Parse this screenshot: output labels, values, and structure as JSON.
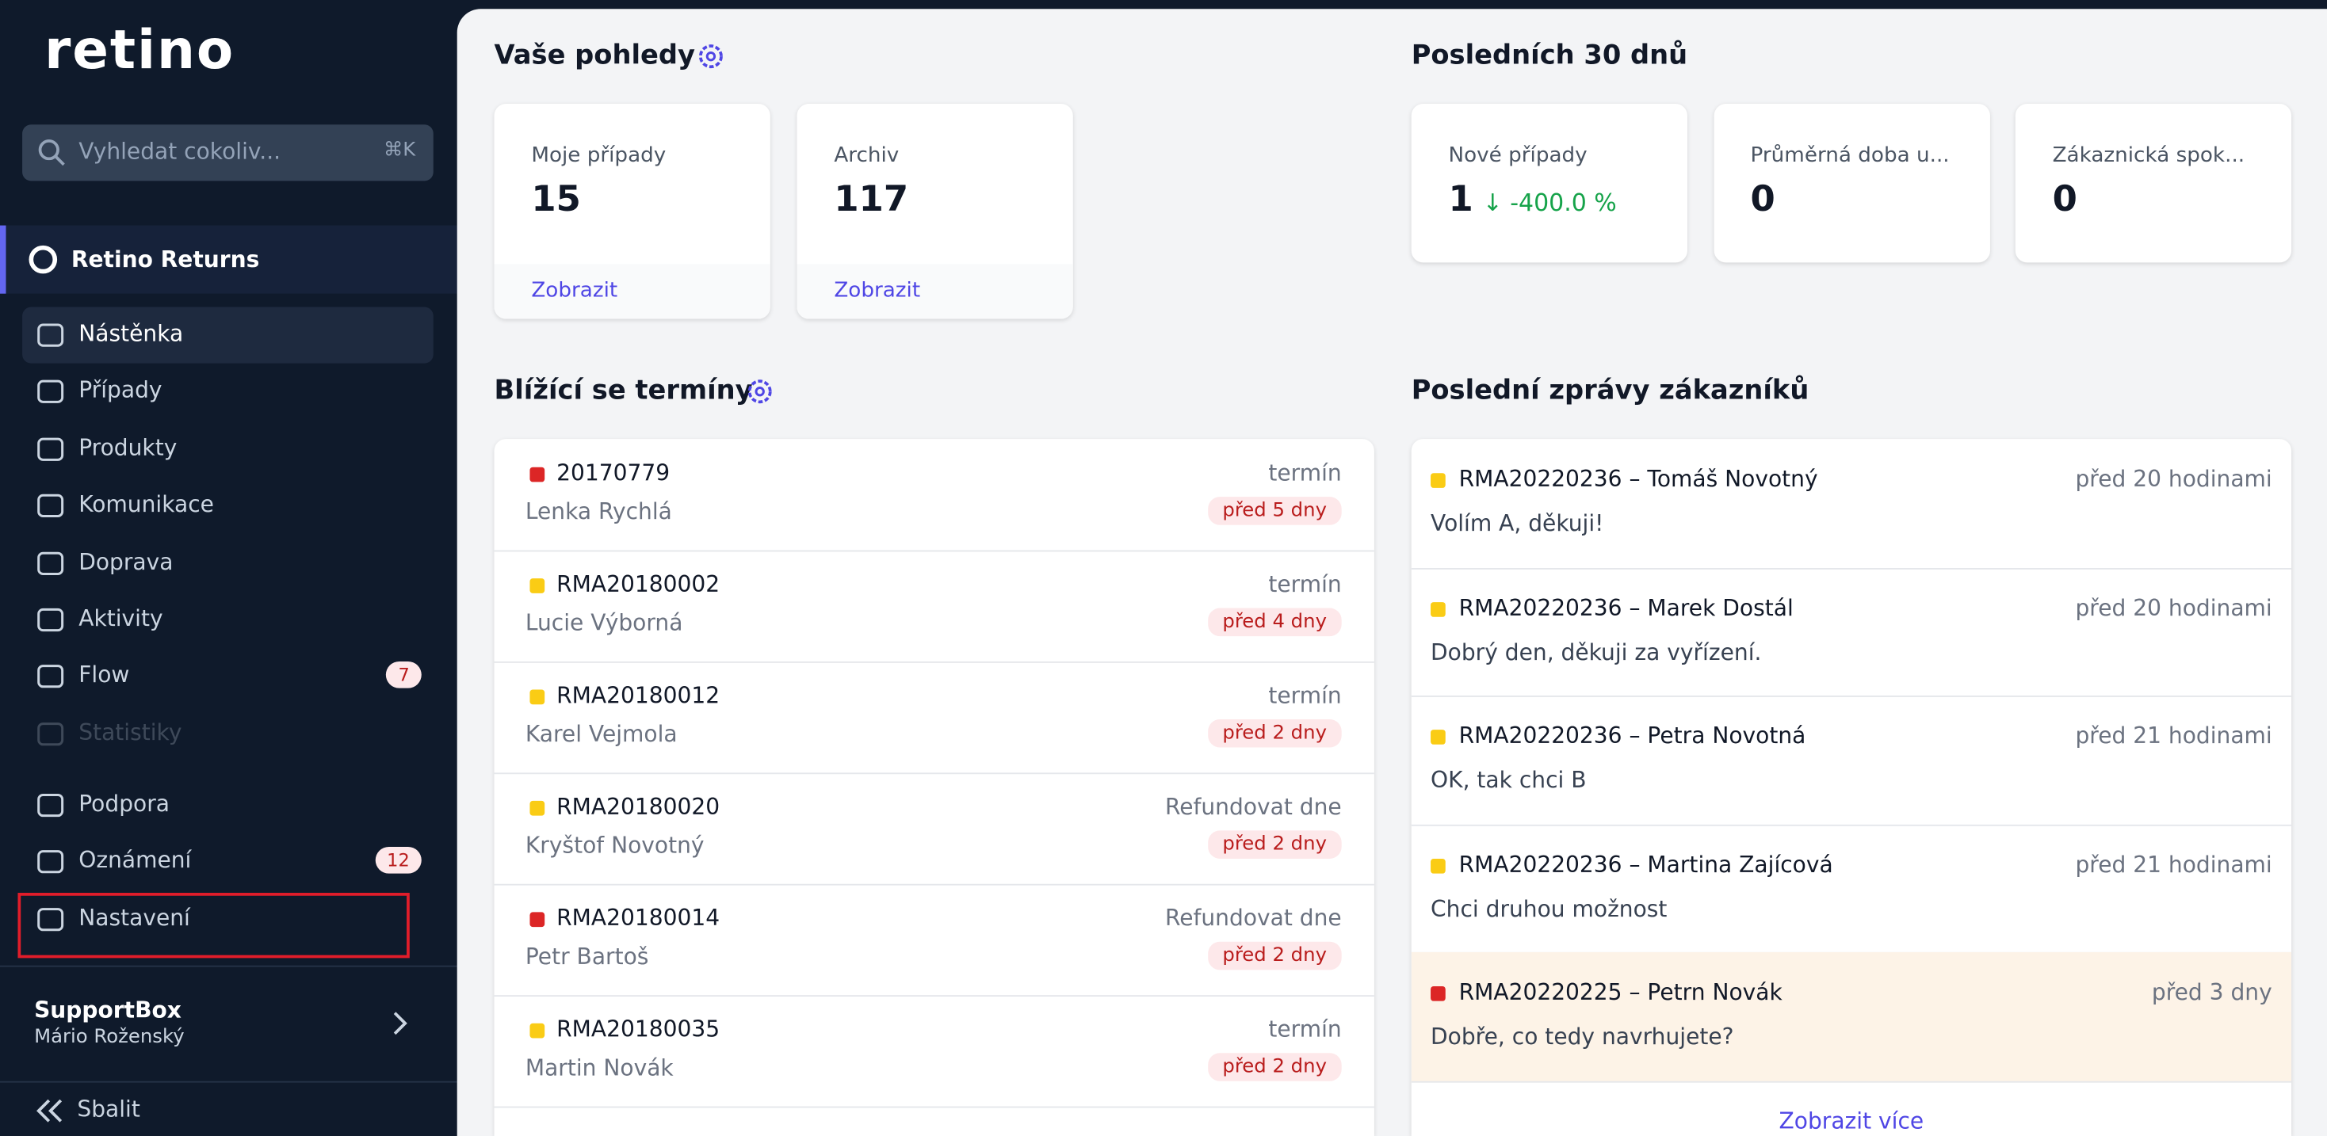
{
  "sidebar": {
    "logo": "retino",
    "search": {
      "placeholder": "Vyhledat cokoliv...",
      "shortcut": "⌘K"
    },
    "workspace": "Retino Returns",
    "nav": [
      {
        "label": "Nástěnka"
      },
      {
        "label": "Případy"
      },
      {
        "label": "Produkty"
      },
      {
        "label": "Komunikace"
      },
      {
        "label": "Doprava"
      },
      {
        "label": "Aktivity"
      },
      {
        "label": "Flow",
        "badge": "7"
      },
      {
        "label": "Statistiky"
      }
    ],
    "bottom_nav": [
      {
        "label": "Podpora"
      },
      {
        "label": "Oznámení",
        "badge": "12"
      },
      {
        "label": "Nastavení"
      }
    ],
    "account": {
      "name": "SupportBox",
      "user": "Mário Roženský"
    },
    "collapse": "Sbalit"
  },
  "views": {
    "title": "Vaše pohledy",
    "cards": [
      {
        "label": "Moje případy",
        "value": "15",
        "link": "Zobrazit"
      },
      {
        "label": "Archiv",
        "value": "117",
        "link": "Zobrazit"
      }
    ]
  },
  "last30": {
    "title": "Posledních 30 dnů",
    "cards": [
      {
        "label": "Nové případy",
        "value": "1",
        "change": "↓ -400.0 %"
      },
      {
        "label": "Průměrná doba u...",
        "value": "0"
      },
      {
        "label": "Zákaznická spok...",
        "value": "0"
      }
    ]
  },
  "deadlines": {
    "title": "Blížící se termíny",
    "items": [
      {
        "id": "20170779",
        "name": "Lenka Rychlá",
        "type": "termín",
        "due": "před 5 dny",
        "color": "#dc2626"
      },
      {
        "id": "RMA20180002",
        "name": "Lucie Výborná",
        "type": "termín",
        "due": "před 4 dny",
        "color": "#facc15"
      },
      {
        "id": "RMA20180012",
        "name": "Karel Vejmola",
        "type": "termín",
        "due": "před 2 dny",
        "color": "#facc15"
      },
      {
        "id": "RMA20180020",
        "name": "Kryštof Novotný",
        "type": "Refundovat dne",
        "due": "před 2 dny",
        "color": "#facc15"
      },
      {
        "id": "RMA20180014",
        "name": "Petr Bartoš",
        "type": "Refundovat dne",
        "due": "před 2 dny",
        "color": "#dc2626"
      },
      {
        "id": "RMA20180035",
        "name": "Martin Novák",
        "type": "termín",
        "due": "před 2 dny",
        "color": "#facc15"
      }
    ]
  },
  "messages": {
    "title": "Poslední zprávy zákazníků",
    "items": [
      {
        "title": "RMA20220236 – Tomáš Novotný",
        "time": "před 20 hodinami",
        "text": "Volím A, děkuji!",
        "color": "#facc15"
      },
      {
        "title": "RMA20220236 – Marek Dostál",
        "time": "před 20 hodinami",
        "text": "Dobrý den, děkuji za vyřízení.",
        "color": "#facc15"
      },
      {
        "title": "RMA20220236 – Petra Novotná",
        "time": "před 21 hodinami",
        "text": "OK, tak chci B",
        "color": "#facc15"
      },
      {
        "title": "RMA20220236 – Martina Zajícová",
        "time": "před 21 hodinami",
        "text": "Chci druhou možnost",
        "color": "#facc15"
      },
      {
        "title": "RMA20220225 – Petrn Novák",
        "time": "před 3 dny",
        "text": "Dobře, co tedy navrhujete?",
        "color": "#dc2626",
        "highlight": true
      }
    ],
    "more": "Zobrazit více"
  }
}
